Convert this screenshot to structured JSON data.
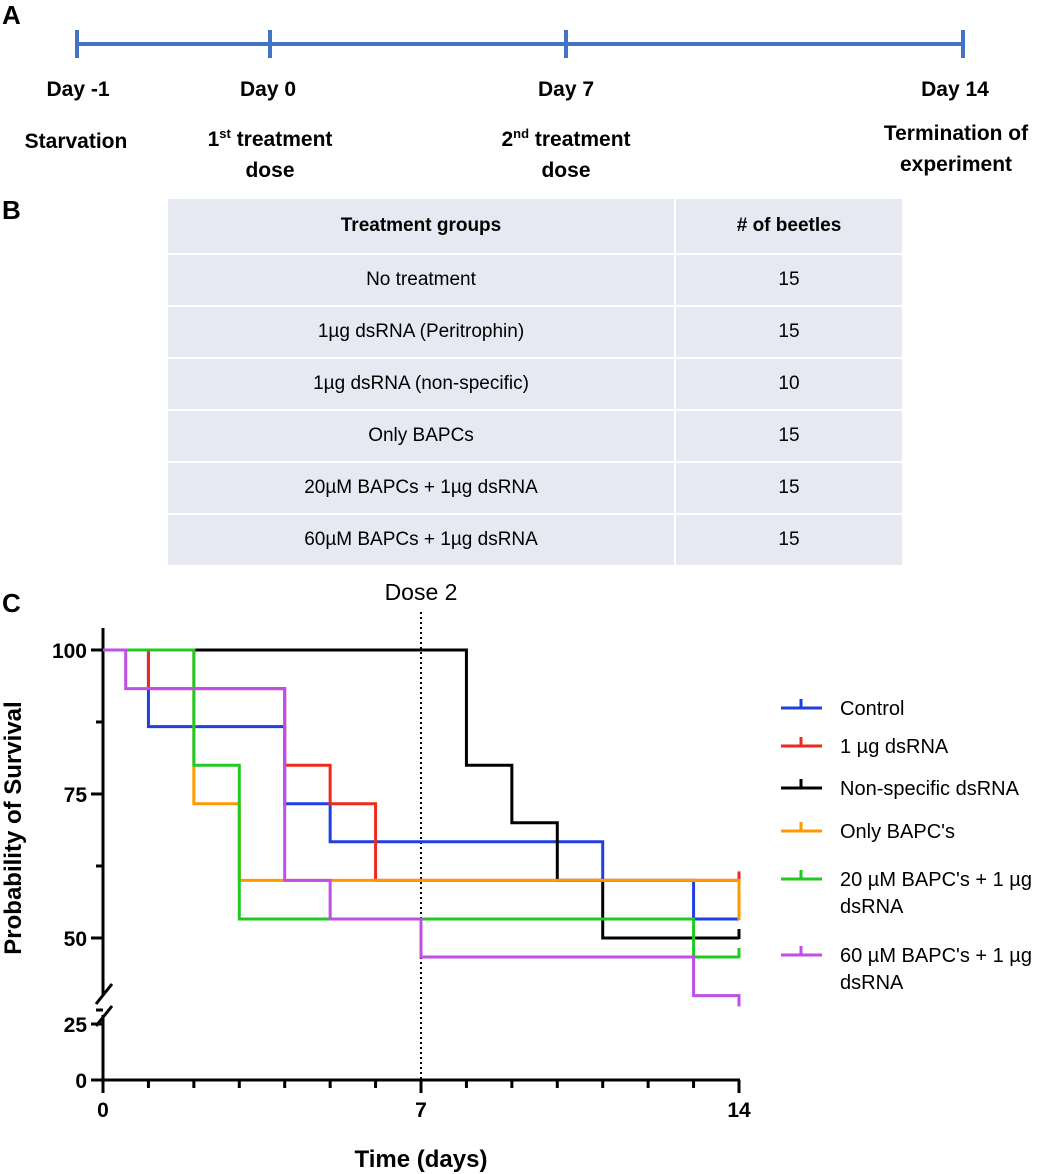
{
  "panels": {
    "a": "A",
    "b": "B",
    "c": "C"
  },
  "timeline": {
    "color": "#4472c4",
    "days": [
      {
        "day": -1,
        "label": "Day -1",
        "event": "Starvation",
        "sup": "",
        "event2": ""
      },
      {
        "day": 0,
        "label": "Day 0",
        "event": "1",
        "sup": "st",
        "event2": " treatment dose"
      },
      {
        "day": 7,
        "label": "Day 7",
        "event": "2",
        "sup": "nd",
        "event2": " treatment dose"
      },
      {
        "day": 14,
        "label": "Day 14",
        "event": "Termination of experiment",
        "sup": "",
        "event2": ""
      }
    ]
  },
  "table": {
    "headers": [
      "Treatment groups",
      "# of beetles"
    ],
    "rows": [
      [
        "No treatment",
        "15"
      ],
      [
        "1µg dsRNA (Peritrophin)",
        "15"
      ],
      [
        "1µg dsRNA (non-specific)",
        "10"
      ],
      [
        "Only BAPCs",
        "15"
      ],
      [
        "20µM BAPCs + 1µg dsRNA",
        "15"
      ],
      [
        "60µM BAPCs + 1µg dsRNA",
        "15"
      ]
    ]
  },
  "chart_data": {
    "type": "line",
    "subtype": "step-survival",
    "title": "",
    "xlabel": "Time (days)",
    "ylabel": "Probability of Survival",
    "xlim": [
      0,
      14
    ],
    "xticks": [
      0,
      7,
      14
    ],
    "yticks": [
      0,
      25,
      50,
      75,
      100
    ],
    "ylim_upper_segment": [
      35,
      100
    ],
    "ylim_lower_segment": [
      0,
      25
    ],
    "axis_break": true,
    "annotation": {
      "text": "Dose 2",
      "x": 7,
      "style": "dotted vertical line"
    },
    "legend_position": "right",
    "series": [
      {
        "name": "Control",
        "color": "#1f3fe0",
        "x": [
          0,
          1,
          4,
          5,
          11,
          13,
          14
        ],
        "y": [
          100,
          86.7,
          73.3,
          66.7,
          60,
          53.3,
          53.3
        ]
      },
      {
        "name": " 1 µg dsRNA",
        "color": "#ee2a1c",
        "x": [
          0,
          1,
          4,
          5,
          6,
          14
        ],
        "y": [
          100,
          93.3,
          80,
          73.3,
          60,
          60
        ]
      },
      {
        "name": "Non-specific dsRNA",
        "color": "#000000",
        "x": [
          0,
          8,
          9,
          10,
          11,
          14
        ],
        "y": [
          100,
          80,
          70,
          60,
          50,
          50
        ]
      },
      {
        "name": "Only BAPC's",
        "color": "#ff9900",
        "x": [
          0,
          2,
          3,
          14
        ],
        "y": [
          100,
          73.3,
          60,
          53.3
        ]
      },
      {
        "name": "20 µM BAPC's + 1 µg dsRNA",
        "color": "#22c922",
        "x": [
          0,
          2,
          3,
          13,
          14
        ],
        "y": [
          100,
          80,
          53.3,
          46.7,
          46.7
        ]
      },
      {
        "name": "60 µM BAPC's + 1 µg dsRNA",
        "color": "#bf4fe6",
        "x": [
          0,
          0.5,
          4,
          5,
          7,
          13,
          14
        ],
        "y": [
          100,
          93.3,
          60,
          53.3,
          46.7,
          40,
          33.3
        ]
      }
    ]
  }
}
